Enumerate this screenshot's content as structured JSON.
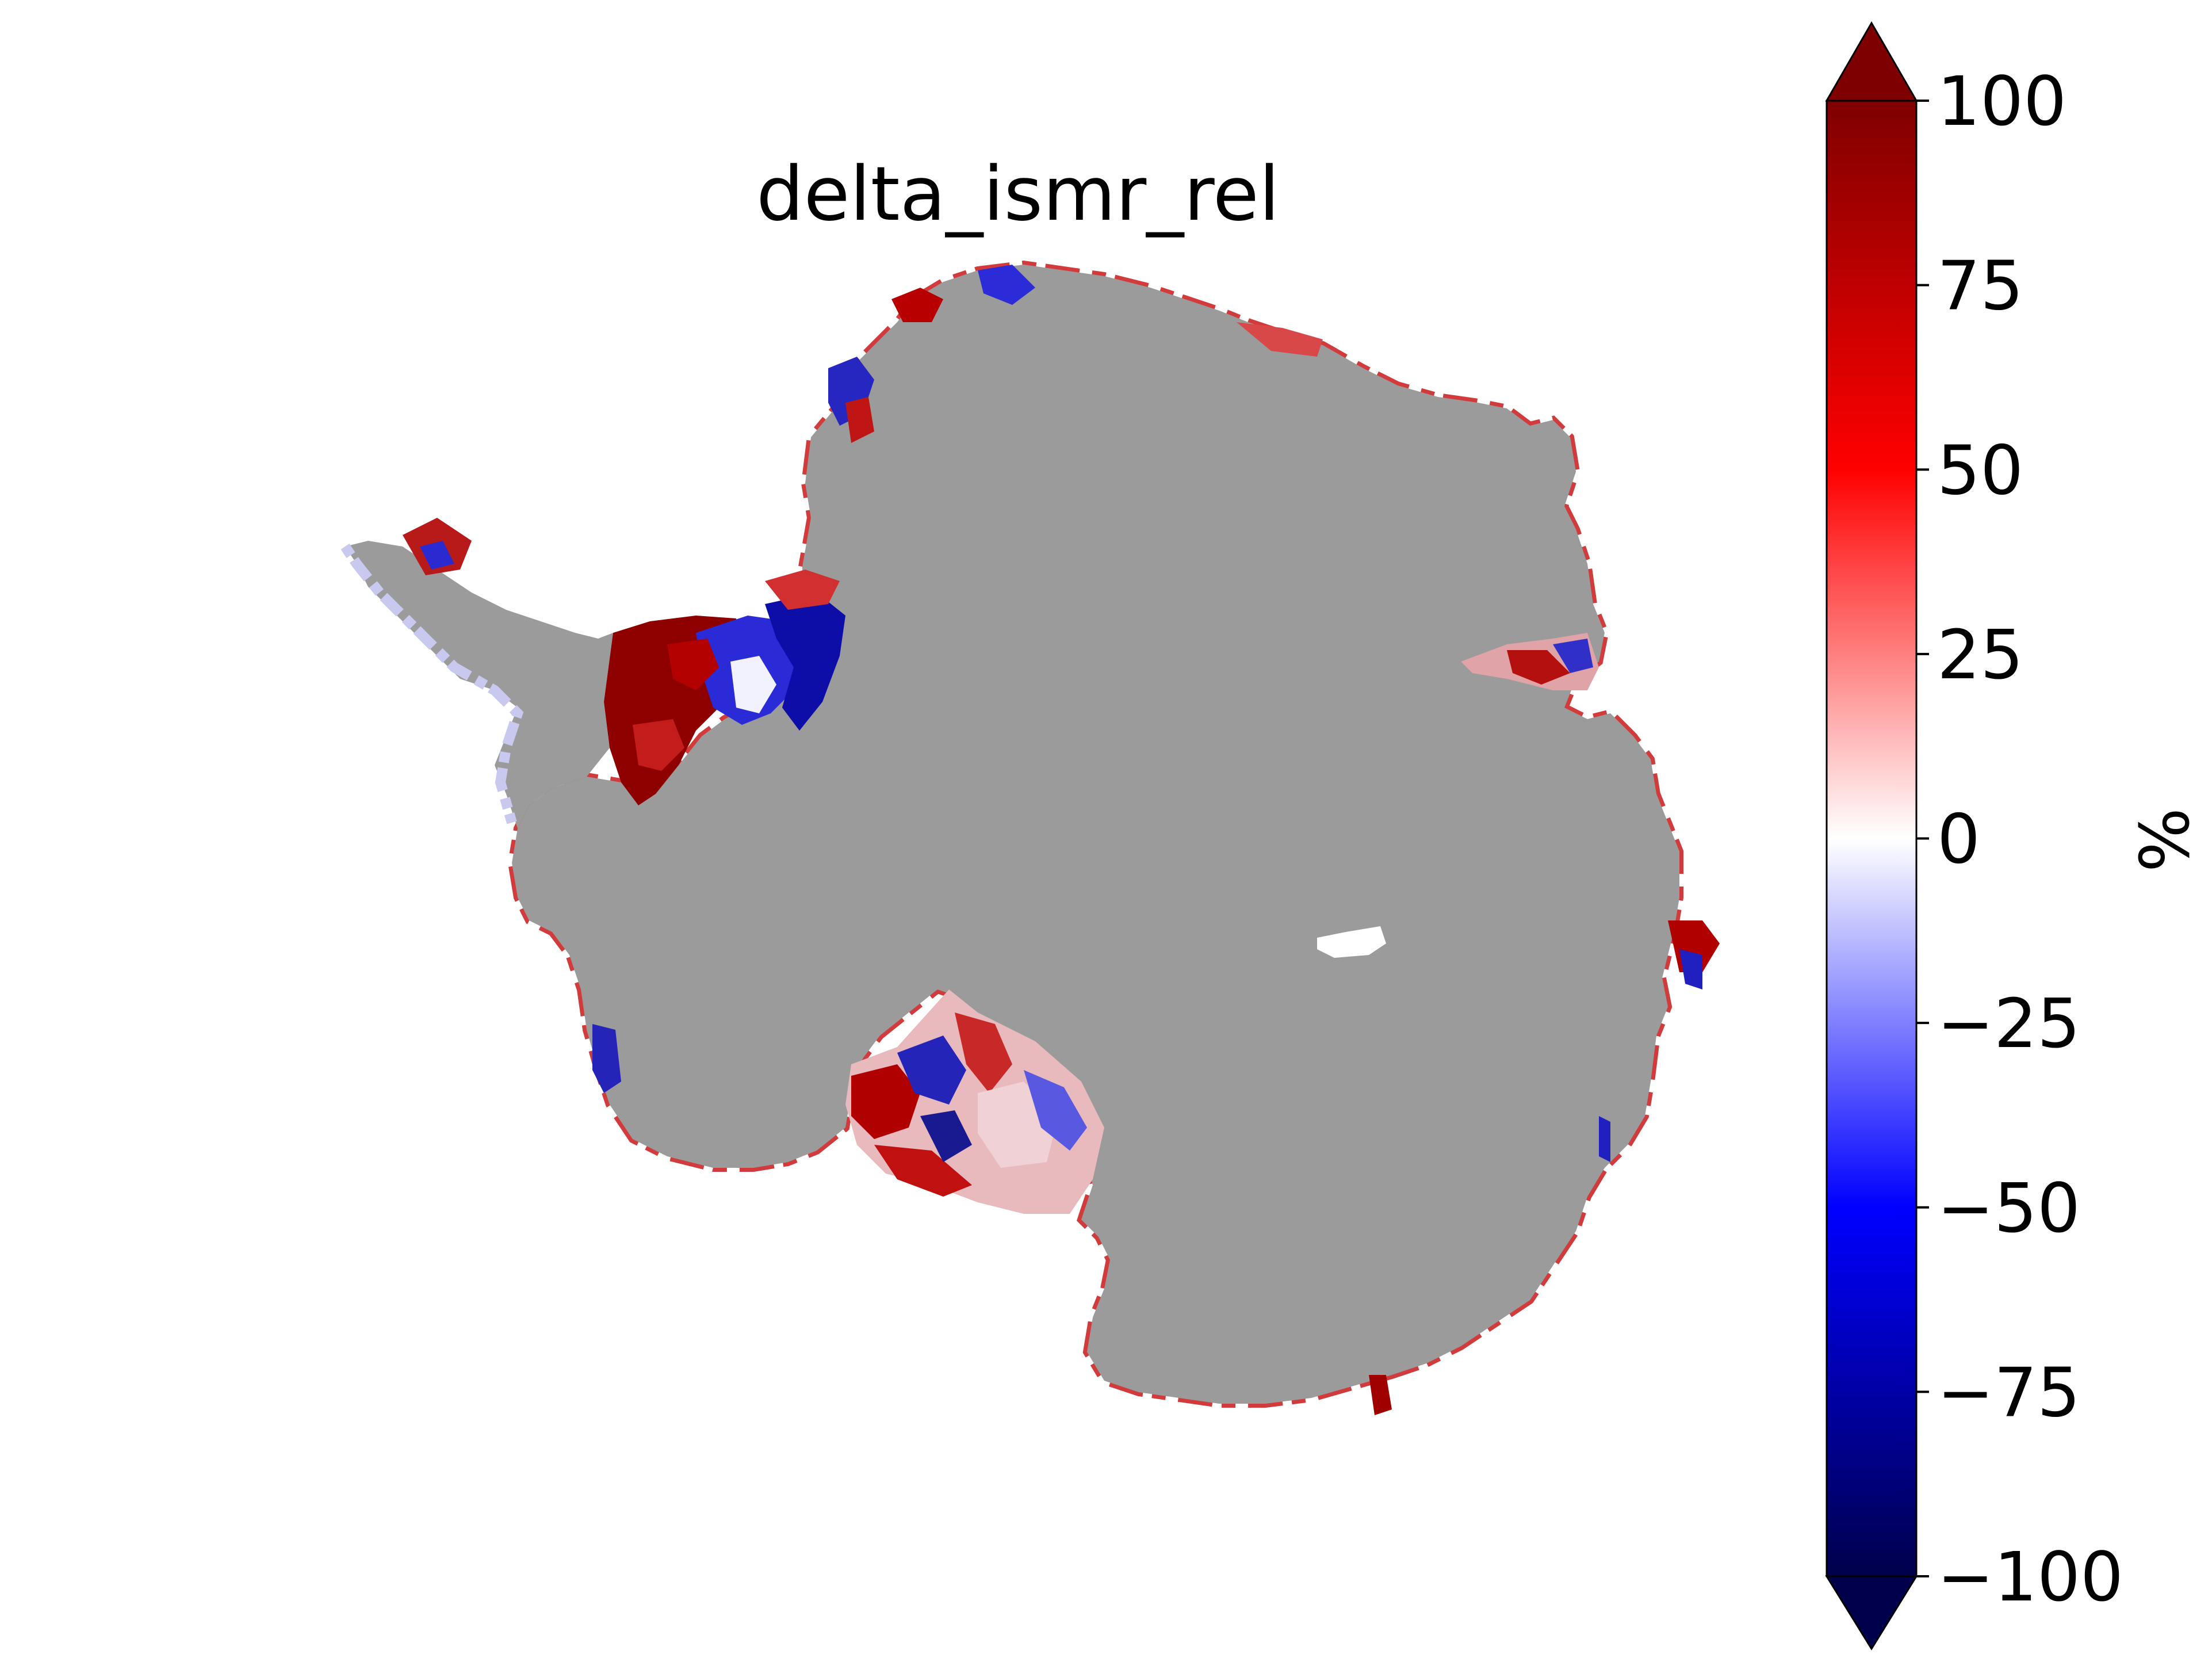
{
  "title": "delta_ismr_rel",
  "colorbar": {
    "label": "%",
    "vmin": -100,
    "vmax": 100,
    "extend": "both",
    "colormap": "seismic",
    "stops": [
      {
        "value": -100,
        "color": "#00004c"
      },
      {
        "value": -50,
        "color": "#0000ff"
      },
      {
        "value": 0,
        "color": "#ffffff"
      },
      {
        "value": 50,
        "color": "#ff0000"
      },
      {
        "value": 100,
        "color": "#7f0000"
      }
    ],
    "ticks": [
      {
        "value": 100,
        "label": "100"
      },
      {
        "value": 75,
        "label": "75"
      },
      {
        "value": 50,
        "label": "50"
      },
      {
        "value": 25,
        "label": "25"
      },
      {
        "value": 0,
        "label": "0"
      },
      {
        "value": -25,
        "label": "−25"
      },
      {
        "value": -50,
        "label": "−50"
      },
      {
        "value": -75,
        "label": "−75"
      },
      {
        "value": -100,
        "label": "−100"
      }
    ]
  },
  "map": {
    "land_color": "#9b9b9b",
    "background_color": "#ffffff"
  }
}
